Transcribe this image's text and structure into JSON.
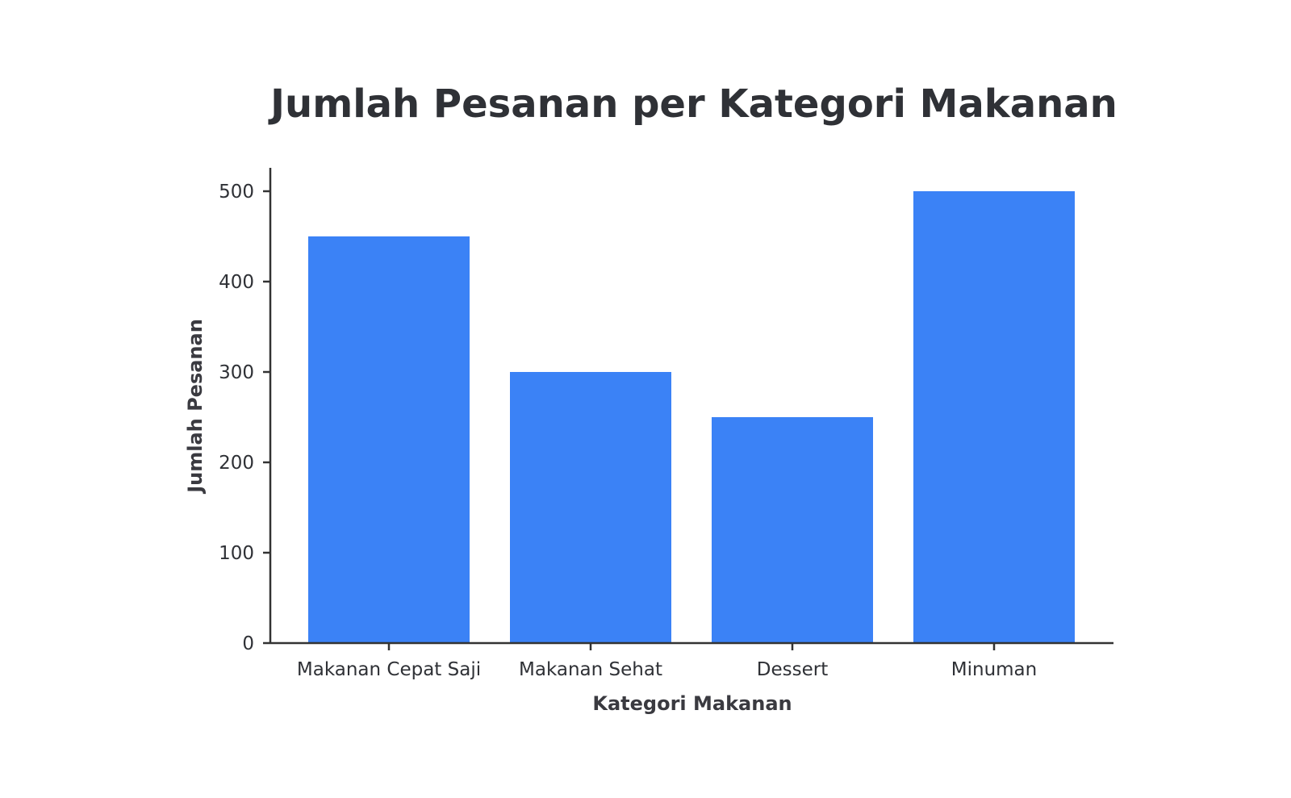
{
  "chart_data": {
    "type": "bar",
    "title": "Jumlah Pesanan per Kategori Makanan",
    "xlabel": "Kategori Makanan",
    "ylabel": "Jumlah Pesanan",
    "categories": [
      "Makanan Cepat Saji",
      "Makanan Sehat",
      "Dessert",
      "Minuman"
    ],
    "values": [
      450,
      300,
      250,
      500
    ],
    "ylim": [
      0,
      525
    ],
    "yticks": [
      0,
      100,
      200,
      300,
      400,
      500
    ],
    "bar_color": "#3b82f6",
    "grid": false,
    "legend": "none"
  }
}
